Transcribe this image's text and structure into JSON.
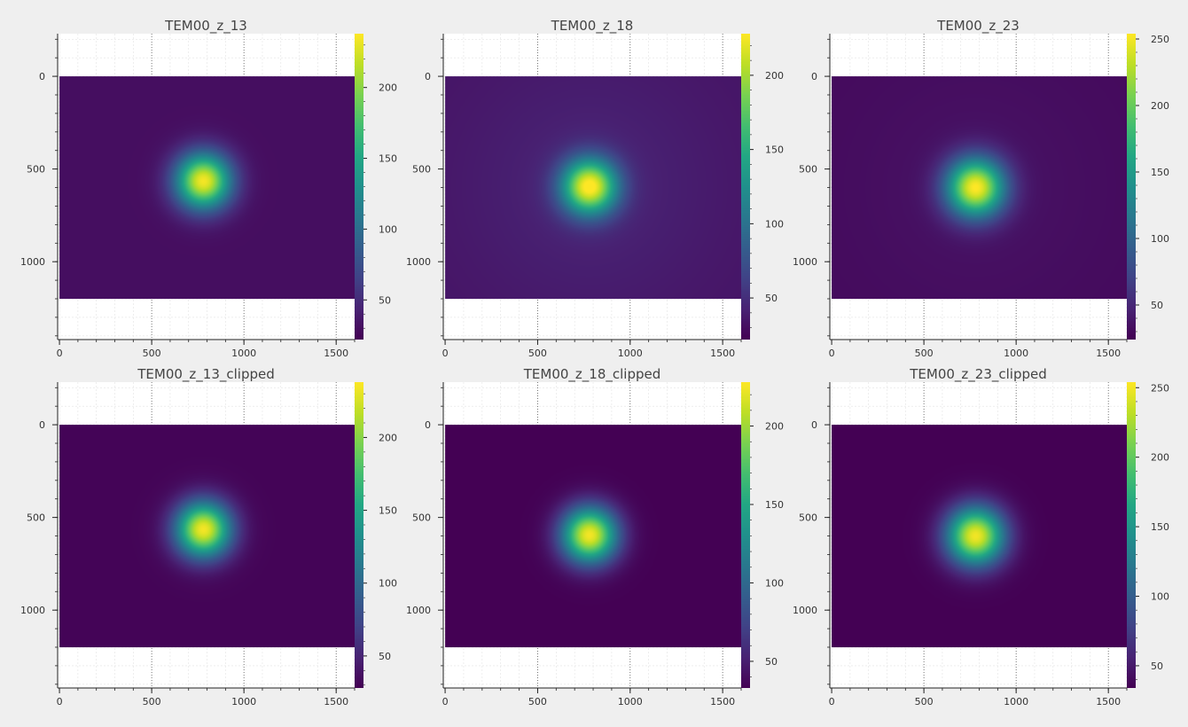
{
  "figure": {
    "background": "#efefef",
    "axes_background": "#ffffff",
    "text_color": "#444444"
  },
  "chart_data": [
    {
      "type": "heatmap",
      "title": "TEM00_z_13",
      "xlim": [
        -10,
        1600
      ],
      "ylim": [
        1420,
        -230
      ],
      "image_extent": {
        "x": [
          0,
          1600
        ],
        "y": [
          0,
          1200
        ]
      },
      "beam": {
        "cx": 780,
        "cy": 565,
        "sigma": 105,
        "peak": 235
      },
      "background_level": 30,
      "glow": 0,
      "xticks": [
        0,
        500,
        1000,
        1500
      ],
      "yticks": [
        0,
        500,
        1000
      ],
      "colorbar": {
        "range": [
          22,
          238
        ],
        "ticks": [
          50,
          100,
          150,
          200
        ],
        "colormap": "viridis"
      },
      "grid": true
    },
    {
      "type": "heatmap",
      "title": "TEM00_z_18",
      "xlim": [
        -10,
        1600
      ],
      "ylim": [
        1420,
        -230
      ],
      "image_extent": {
        "x": [
          0,
          1600
        ],
        "y": [
          0,
          1200
        ]
      },
      "beam": {
        "cx": 780,
        "cy": 595,
        "sigma": 105,
        "peak": 225
      },
      "background_level": 33,
      "glow": 10,
      "xticks": [
        0,
        500,
        1000,
        1500
      ],
      "yticks": [
        0,
        500,
        1000
      ],
      "colorbar": {
        "range": [
          22,
          228
        ],
        "ticks": [
          50,
          100,
          150,
          200
        ],
        "colormap": "viridis"
      },
      "grid": true
    },
    {
      "type": "heatmap",
      "title": "TEM00_z_23",
      "xlim": [
        -10,
        1600
      ],
      "ylim": [
        1420,
        -230
      ],
      "image_extent": {
        "x": [
          0,
          1600
        ],
        "y": [
          0,
          1200
        ]
      },
      "beam": {
        "cx": 780,
        "cy": 600,
        "sigma": 110,
        "peak": 250
      },
      "background_level": 30,
      "glow": 5,
      "xticks": [
        0,
        500,
        1000,
        1500
      ],
      "yticks": [
        0,
        500,
        1000
      ],
      "colorbar": {
        "range": [
          24,
          254
        ],
        "ticks": [
          50,
          100,
          150,
          200,
          250
        ],
        "colormap": "viridis"
      },
      "grid": true
    },
    {
      "type": "heatmap",
      "title": "TEM00_z_13_clipped",
      "xlim": [
        -10,
        1600
      ],
      "ylim": [
        1420,
        -230
      ],
      "image_extent": {
        "x": [
          0,
          1600
        ],
        "y": [
          0,
          1200
        ]
      },
      "beam": {
        "cx": 780,
        "cy": 565,
        "sigma": 105,
        "peak": 235
      },
      "background_level": 30,
      "glow": 0,
      "xticks": [
        0,
        500,
        1000,
        1500
      ],
      "yticks": [
        0,
        500,
        1000
      ],
      "colorbar": {
        "range": [
          28,
          238
        ],
        "ticks": [
          50,
          100,
          150,
          200
        ],
        "colormap": "viridis"
      },
      "grid": true
    },
    {
      "type": "heatmap",
      "title": "TEM00_z_18_clipped",
      "xlim": [
        -10,
        1600
      ],
      "ylim": [
        1420,
        -230
      ],
      "image_extent": {
        "x": [
          0,
          1600
        ],
        "y": [
          0,
          1200
        ]
      },
      "beam": {
        "cx": 780,
        "cy": 595,
        "sigma": 105,
        "peak": 225
      },
      "background_level": 33,
      "glow": 0,
      "xticks": [
        0,
        500,
        1000,
        1500
      ],
      "yticks": [
        0,
        500,
        1000
      ],
      "colorbar": {
        "range": [
          33,
          228
        ],
        "ticks": [
          50,
          100,
          150,
          200
        ],
        "colormap": "viridis"
      },
      "grid": true
    },
    {
      "type": "heatmap",
      "title": "TEM00_z_23_clipped",
      "xlim": [
        -10,
        1600
      ],
      "ylim": [
        1420,
        -230
      ],
      "image_extent": {
        "x": [
          0,
          1600
        ],
        "y": [
          0,
          1200
        ]
      },
      "beam": {
        "cx": 780,
        "cy": 600,
        "sigma": 110,
        "peak": 250
      },
      "background_level": 34,
      "glow": 0,
      "xticks": [
        0,
        500,
        1000,
        1500
      ],
      "yticks": [
        0,
        500,
        1000
      ],
      "colorbar": {
        "range": [
          34,
          254
        ],
        "ticks": [
          50,
          100,
          150,
          200,
          250
        ],
        "colormap": "viridis"
      },
      "grid": true
    }
  ]
}
